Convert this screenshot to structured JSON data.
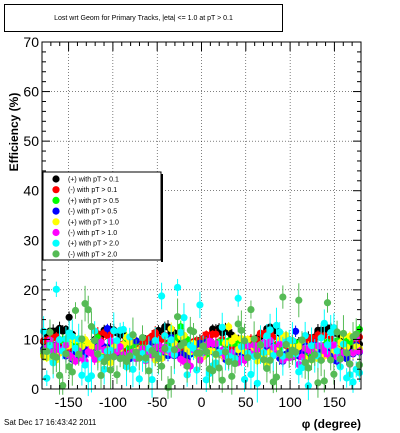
{
  "title": "Lost wrt Geom for Primary Tracks, |eta| <= 1.0 at pT > 0.1",
  "footer": "Sat Dec 17 16:43:42 2011",
  "chart_data": {
    "type": "scatter",
    "xlabel": "φ (degree)",
    "ylabel": "Efficiency (%)",
    "xlim": [
      -180,
      180
    ],
    "ylim": [
      0,
      70
    ],
    "x_ticks": [
      -150,
      -100,
      -50,
      0,
      50,
      100,
      150
    ],
    "y_ticks": [
      0,
      10,
      20,
      30,
      40,
      50,
      60,
      70
    ],
    "grid": true,
    "legend_position": "left-middle",
    "series": [
      {
        "name": "(+) with pT > 0.1",
        "color": "#000000",
        "base": 10.5,
        "amp": 1.5,
        "period": 60,
        "phase": 20,
        "noise": 0.6,
        "seed": 1
      },
      {
        "name": "(-) with pT > 0.1",
        "color": "#ff0000",
        "base": 9.5,
        "amp": 1.2,
        "period": 60,
        "phase": 10,
        "noise": 0.8,
        "seed": 2
      },
      {
        "name": "(+) with pT > 0.5",
        "color": "#00ff00",
        "base": 8.5,
        "amp": 1.0,
        "period": 60,
        "phase": 35,
        "noise": 1.0,
        "seed": 3
      },
      {
        "name": "(-) with pT > 0.5",
        "color": "#0000ff",
        "base": 7.5,
        "amp": 1.0,
        "period": 60,
        "phase": 5,
        "noise": 1.0,
        "seed": 4
      },
      {
        "name": "(+) with pT > 1.0",
        "color": "#ffff00",
        "base": 8.0,
        "amp": 1.5,
        "period": 60,
        "phase": 40,
        "noise": 1.6,
        "seed": 5
      },
      {
        "name": "(-) with pT > 1.0",
        "color": "#ff00ff",
        "base": 7.5,
        "amp": 1.5,
        "period": 60,
        "phase": 15,
        "noise": 1.6,
        "seed": 6
      },
      {
        "name": "(+) with pT > 2.0",
        "color": "#00ffff",
        "base": 7.0,
        "amp": 3.0,
        "period": 60,
        "phase": 25,
        "noise": 4.0,
        "seed": 7
      },
      {
        "name": "(-) with pT > 2.0",
        "color": "#55bb55",
        "base": 6.0,
        "amp": 2.5,
        "period": 60,
        "phase": 50,
        "noise": 3.5,
        "seed": 8
      }
    ],
    "n_points": 100
  }
}
